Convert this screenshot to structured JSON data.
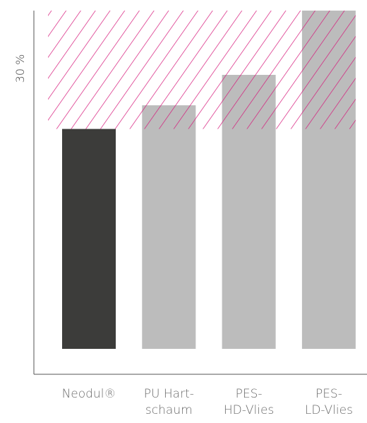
{
  "chart_data": {
    "type": "bar",
    "categories": [
      [
        "Neodul®"
      ],
      [
        "PU Hart-",
        "schaum"
      ],
      [
        "PES-",
        "HD-Vlies"
      ],
      [
        "PES-",
        "LD-Vlies"
      ]
    ],
    "values": [
      65,
      72,
      81,
      100
    ],
    "ylim": [
      0,
      100
    ],
    "ylabel": "30 %",
    "xlabel": "",
    "title": "",
    "grid": false,
    "legend": "none",
    "highlight_threshold": 65,
    "colors": {
      "highlight_bar": "#3c3c3a",
      "other_bar": "#bcbcbc",
      "hatch": "#d6177a",
      "axis": "#555555",
      "text": "#6b6b6b"
    },
    "highlight_index": 0
  }
}
